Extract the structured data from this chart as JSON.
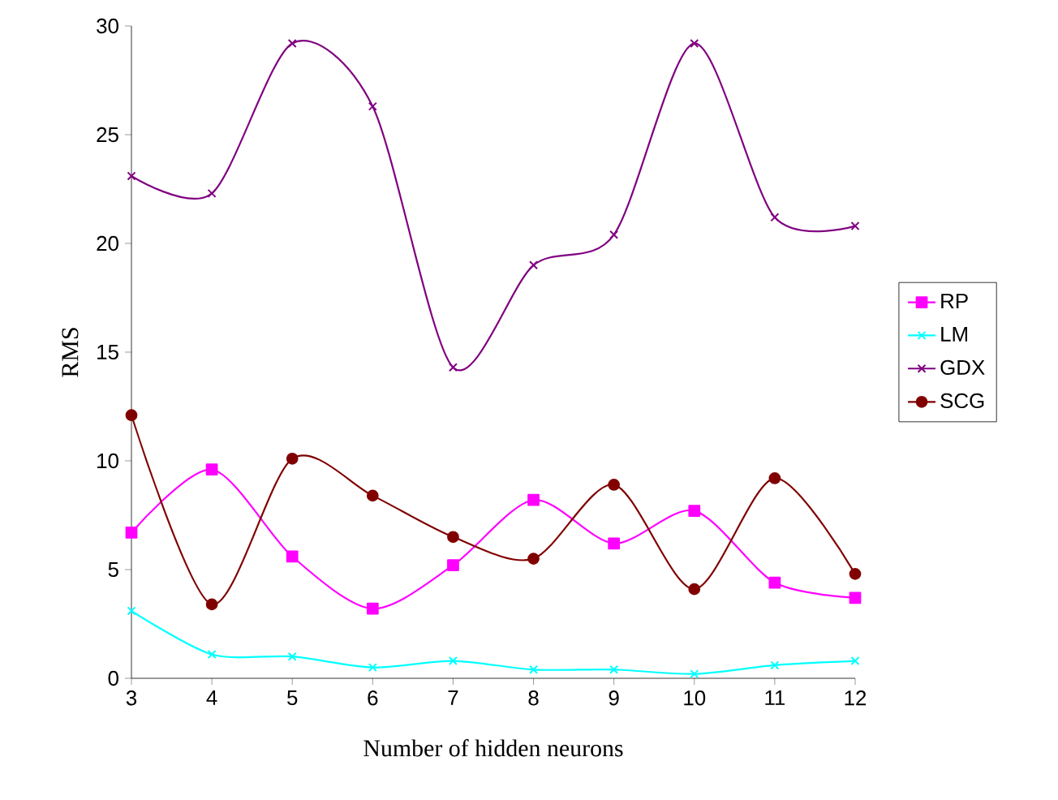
{
  "chart_data": {
    "type": "line",
    "xlabel": "Number of hidden neurons",
    "ylabel": "RMS",
    "x": [
      3,
      4,
      5,
      6,
      7,
      8,
      9,
      10,
      11,
      12
    ],
    "xlim": [
      3,
      12
    ],
    "xticks": [
      3,
      4,
      5,
      6,
      7,
      8,
      9,
      10,
      11,
      12
    ],
    "ylim": [
      0,
      30
    ],
    "yticks": [
      0,
      5,
      10,
      15,
      20,
      25,
      30
    ],
    "legend": "right",
    "grid": false,
    "line_style": "solid",
    "series": [
      {
        "name": "RP",
        "color": "#ff00ff",
        "marker": "square",
        "values": [
          6.7,
          9.6,
          5.6,
          3.2,
          5.2,
          8.2,
          6.2,
          7.7,
          4.4,
          3.7
        ]
      },
      {
        "name": "LM",
        "color": "#00ffff",
        "marker": "cross",
        "values": [
          3.1,
          1.1,
          1.0,
          0.5,
          0.8,
          0.4,
          0.4,
          0.2,
          0.6,
          0.8
        ]
      },
      {
        "name": "GDX",
        "color": "#800080",
        "marker": "cross",
        "values": [
          23.1,
          22.3,
          29.2,
          26.3,
          14.3,
          19.0,
          20.4,
          29.2,
          21.2,
          20.8
        ]
      },
      {
        "name": "SCG",
        "color": "#800000",
        "marker": "circle",
        "values": [
          12.1,
          3.4,
          10.1,
          8.4,
          6.5,
          5.5,
          8.9,
          4.1,
          9.2,
          4.8
        ]
      }
    ]
  }
}
